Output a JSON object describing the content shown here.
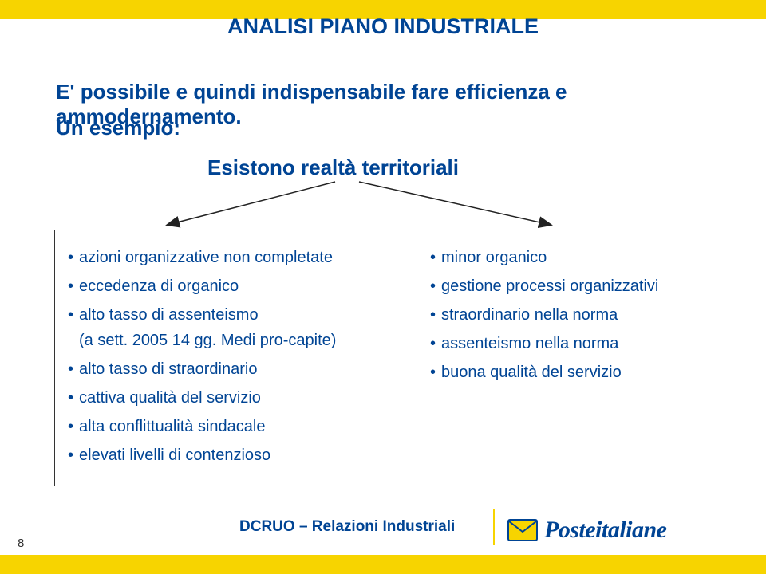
{
  "colors": {
    "bar_color": "#f7d400",
    "title_color": "#004494",
    "text_color": "#004494",
    "box_border": "#333333",
    "footer_color": "#004494",
    "envelope_blue": "#004494",
    "envelope_yellow": "#f7d400",
    "arrow_stroke": "#222222"
  },
  "title": "ANALISI PIANO INDUSTRIALE",
  "intro": "E' possibile e quindi indispensabile fare efficienza e ammodernamento.",
  "example_label": "Un esempio:",
  "subtitle": "Esistono realtà territoriali",
  "left_box_items": [
    "azioni organizzative non completate",
    "eccedenza di organico",
    "alto tasso di assenteismo\n(a sett. 2005 14 gg. Medi pro-capite)",
    "alto tasso di straordinario",
    "cattiva qualità del servizio",
    "alta conflittualità sindacale",
    "elevati livelli di contenzioso"
  ],
  "right_box_items": [
    "minor organico",
    "gestione processi organizzativi",
    "straordinario nella norma",
    "assenteismo nella norma",
    "buona qualità del servizio"
  ],
  "footer_text": "DCRUO – Relazioni Industriali",
  "page_number": "8",
  "logo": {
    "first": "Poste",
    "second": "italiane"
  }
}
